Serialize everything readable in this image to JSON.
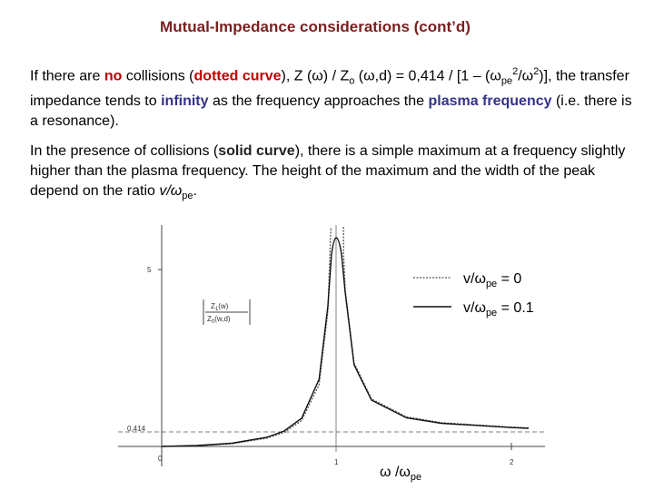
{
  "title": "Mutual-Impedance considerations (cont’d)",
  "paragraphs": [
    [
      "If there are ",
      "no",
      " collisions (",
      "dotted curve",
      "),  Z (ω) / Z",
      "o",
      " (ω,d) = 0,414 / [1  –  (ω",
      "pe",
      "2",
      "/ω",
      "2",
      ")], the transfer impedance tends to ",
      "infinity",
      " as the frequency approaches the ",
      "plasma frequency",
      " (i.e. there is a resonance)."
    ],
    [
      "In the presence of collisions (",
      "solid curve",
      "), there is a simple maximum at a frequency slightly higher than the plasma frequency. The height of the maximum and the width of the peak depend on the ratio ",
      "v/ω",
      "pe",
      "."
    ]
  ],
  "figure": {
    "y_labels": [
      "5",
      "0,414"
    ],
    "x_labels": [
      "0",
      "1",
      "2"
    ],
    "y_title": [
      [
        "Z",
        "1",
        "(w)"
      ],
      [
        "Z",
        "0",
        "(w,d)"
      ]
    ],
    "x_title": [
      "ω /ω",
      "pe"
    ],
    "legend": [
      [
        "v/ω",
        "pe",
        " = 0"
      ],
      [
        "v/ω",
        "pe",
        " = 0.1"
      ]
    ]
  }
}
